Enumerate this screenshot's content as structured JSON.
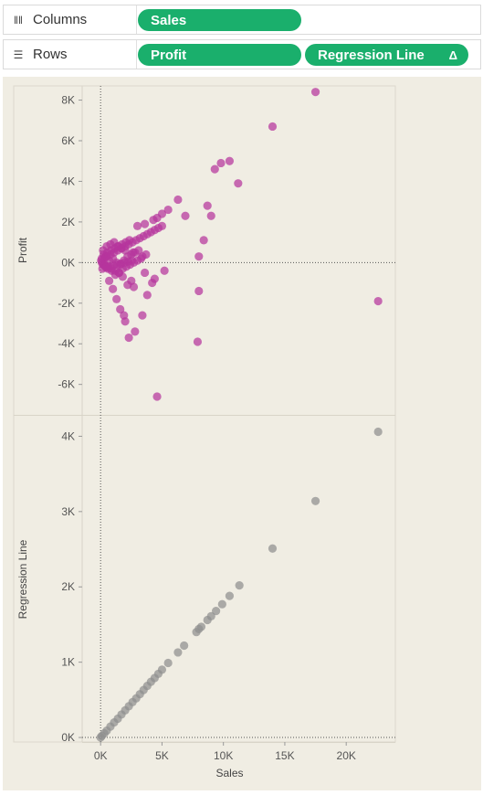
{
  "shelves": {
    "columns": {
      "label": "Columns",
      "icon": "columns-icon",
      "pills": [
        "Sales"
      ]
    },
    "rows": {
      "label": "Rows",
      "icon": "rows-icon",
      "pills": [
        "Profit",
        "Regression Line"
      ],
      "delta_icon": "Δ"
    }
  },
  "colors": {
    "pill": "#1aaf6c",
    "profit_marks": "#b5359c",
    "regression_marks": "#8f8f8f",
    "pane_bg": "#f0ede3"
  },
  "chart_data": [
    {
      "type": "scatter",
      "xlabel": "Sales",
      "ylabel": "Profit",
      "xlim": [
        -1500,
        24000
      ],
      "ylim": [
        -7500,
        8700
      ],
      "x_ticks": [
        0,
        5000,
        10000,
        15000,
        20000
      ],
      "x_tick_labels": [
        "0K",
        "5K",
        "10K",
        "15K",
        "20K"
      ],
      "y_ticks": [
        8000,
        6000,
        4000,
        2000,
        0,
        -2000,
        -4000,
        -6000
      ],
      "y_tick_labels": [
        "8K",
        "6K",
        "4K",
        "2K",
        "0K",
        "-2K",
        "-4K",
        "-6K"
      ],
      "grid": false,
      "x": [
        17500,
        14000,
        10500,
        9800,
        9300,
        11200,
        6300,
        5500,
        5000,
        4600,
        4300,
        3600,
        3000,
        8700,
        9000,
        6900,
        8400,
        8000,
        22600,
        8000,
        7900,
        4600,
        4400,
        3800,
        3400,
        2800,
        2300,
        2000,
        1900,
        1600,
        1300,
        1000,
        700,
        4200,
        5200,
        3600,
        2700,
        2500,
        2200,
        1800,
        1500,
        1200,
        900,
        600,
        400,
        200,
        100,
        50,
        300,
        500,
        800,
        1100,
        1400,
        1700,
        2000,
        2300,
        2600,
        2900,
        3200,
        3500,
        3800,
        4100,
        4400,
        4700,
        5000,
        300,
        600,
        900,
        1200,
        1500,
        1800,
        2100,
        2400,
        2700,
        3000,
        250,
        550,
        850,
        1150,
        1450,
        1750,
        2050,
        2350,
        2650,
        100,
        400,
        700,
        1000,
        1300,
        1600,
        1900,
        2200,
        2500,
        2800,
        3100,
        3400,
        200,
        500,
        800,
        1100,
        1400,
        1700,
        2000,
        150,
        450,
        750,
        1050,
        1350,
        1650,
        1950,
        2250,
        2550,
        3300,
        3700
      ],
      "y": [
        8400,
        6700,
        5000,
        4900,
        4600,
        3900,
        3100,
        2600,
        2400,
        2200,
        2100,
        1900,
        1800,
        2800,
        2300,
        2300,
        1100,
        300,
        -1900,
        -1400,
        -3900,
        -6600,
        -800,
        -1600,
        -2600,
        -3400,
        -3700,
        -2900,
        -2600,
        -2300,
        -1800,
        -1300,
        -900,
        -1000,
        -400,
        -500,
        -1200,
        -900,
        -1100,
        -700,
        -500,
        -600,
        -400,
        -300,
        -200,
        -100,
        0,
        100,
        200,
        300,
        400,
        500,
        600,
        700,
        800,
        900,
        1000,
        1100,
        1200,
        1300,
        1400,
        1500,
        1600,
        1700,
        1800,
        -100,
        -200,
        -300,
        -400,
        -500,
        -300,
        -200,
        -100,
        0,
        100,
        400,
        500,
        600,
        700,
        800,
        900,
        1000,
        1100,
        500,
        200,
        300,
        100,
        200,
        0,
        -100,
        100,
        300,
        400,
        500,
        600,
        300,
        600,
        800,
        900,
        1000,
        800,
        700,
        600,
        -300,
        -250,
        -200,
        -150,
        -100,
        -50,
        0,
        50,
        100,
        200,
        400
      ]
    },
    {
      "type": "scatter",
      "xlabel": "Sales",
      "ylabel": "Regression Line",
      "xlim": [
        -1500,
        24000
      ],
      "ylim": [
        -60,
        4260
      ],
      "x_ticks": [
        0,
        5000,
        10000,
        15000,
        20000
      ],
      "x_tick_labels": [
        "0K",
        "5K",
        "10K",
        "15K",
        "20K"
      ],
      "y_ticks": [
        4000,
        3000,
        2000,
        1000,
        0
      ],
      "y_tick_labels": [
        "4K",
        "3K",
        "2K",
        "1K",
        "0K"
      ],
      "grid": false,
      "x": [
        22600,
        17500,
        14000,
        11300,
        10500,
        9900,
        9400,
        9000,
        8700,
        8200,
        8000,
        7800,
        6800,
        6300,
        5500,
        5000,
        4700,
        4400,
        4100,
        3800,
        3500,
        3200,
        2900,
        2600,
        2300,
        2000,
        1700,
        1400,
        1100,
        800,
        500,
        300,
        100,
        0
      ],
      "y": [
        4060,
        3140,
        2510,
        2020,
        1880,
        1770,
        1680,
        1610,
        1560,
        1470,
        1440,
        1400,
        1220,
        1130,
        990,
        900,
        845,
        790,
        740,
        685,
        630,
        575,
        520,
        470,
        415,
        360,
        305,
        250,
        200,
        145,
        90,
        55,
        20,
        0
      ]
    }
  ]
}
